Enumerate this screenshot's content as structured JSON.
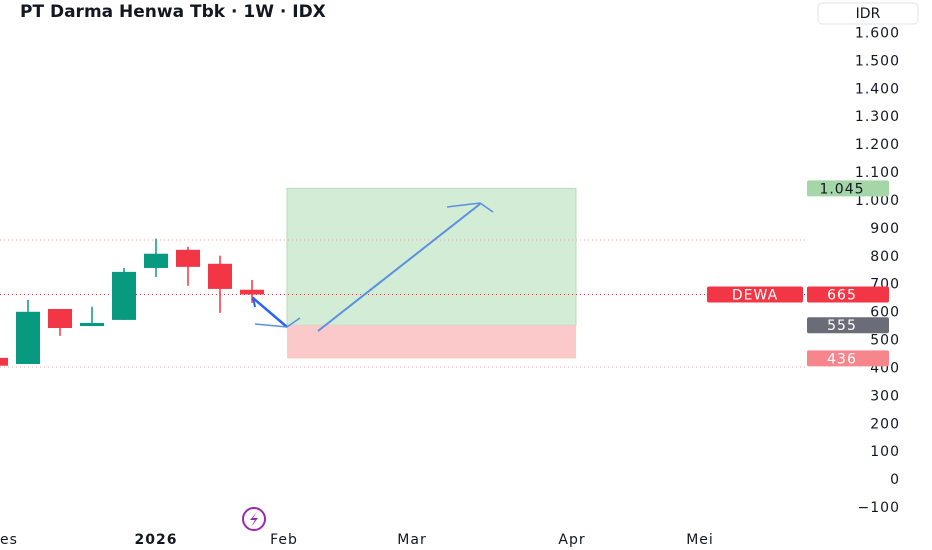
{
  "chart_data": {
    "type": "candlestick",
    "title": "PT Darma Henwa Tbk · 1W · IDX",
    "currency": "IDR",
    "categories": [
      "es",
      null,
      null,
      null,
      null,
      "2026",
      null,
      null,
      null,
      "Feb",
      null,
      null,
      null,
      "Mar",
      null,
      null,
      null,
      null,
      "Apr",
      null,
      null,
      null,
      "Mei",
      null,
      null,
      null
    ],
    "open": [
      438,
      416,
      613,
      552,
      574,
      760,
      825,
      775,
      682,
      null,
      null,
      null,
      null,
      null,
      null,
      null,
      null,
      null,
      null,
      null,
      null,
      null,
      null,
      null,
      null,
      null
    ],
    "high": [
      445,
      646,
      613,
      621,
      760,
      865,
      836,
      804,
      717,
      null,
      null,
      null,
      null,
      null,
      null,
      null,
      null,
      null,
      null,
      null,
      null,
      null,
      null,
      null,
      null,
      null
    ],
    "low": [
      405,
      416,
      517,
      552,
      574,
      728,
      696,
      599,
      635,
      null,
      null,
      null,
      null,
      null,
      null,
      null,
      null,
      null,
      null,
      null,
      null,
      null,
      null,
      null,
      null,
      null
    ],
    "close": [
      410,
      603,
      545,
      563,
      746,
      811,
      764,
      685,
      665,
      null,
      null,
      null,
      null,
      null,
      null,
      null,
      null,
      null,
      null,
      null,
      null,
      null,
      null,
      null,
      null,
      null
    ],
    "up_color": "#089981",
    "down_color": "#f23645",
    "ylim": [
      -150,
      1720
    ],
    "yticks": [
      {
        "value": -100,
        "label": "−100"
      },
      0,
      100,
      200,
      300,
      400,
      500,
      600,
      700,
      800,
      900,
      {
        "value": 1000,
        "label": "1.000"
      },
      {
        "value": 1100,
        "label": "1.100"
      },
      {
        "value": 1200,
        "label": "1.200"
      },
      {
        "value": 1300,
        "label": "1.300"
      },
      {
        "value": 1400,
        "label": "1.400"
      },
      {
        "value": 1500,
        "label": "1.500"
      },
      {
        "value": 1600,
        "label": "1.600"
      }
    ],
    "position": {
      "target": 1045,
      "target_label": "1.045",
      "entry": 555,
      "stop": 436,
      "profit_color": "#d2ecd5",
      "loss_color": "#fcc9ca"
    },
    "price_labels": [
      {
        "name": "DEWA",
        "value": 665,
        "color": "#f23645"
      },
      {
        "value": 555,
        "color": "#6a6d78"
      },
      {
        "value": 436,
        "color": "#f7868c"
      },
      {
        "value": 1045,
        "value_label": "1.045",
        "color": "#a5d6a7"
      }
    ]
  }
}
